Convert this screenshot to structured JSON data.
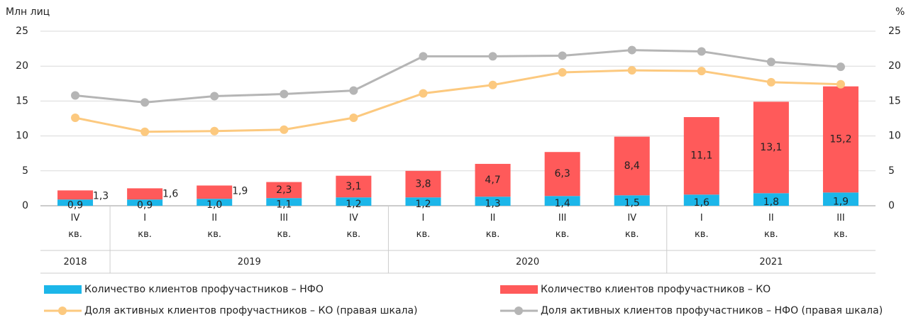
{
  "chart_data": {
    "type": "bar",
    "stacked": true,
    "y_label": "Млн лиц",
    "y2_label": "%",
    "categories": [
      "IV\nкв.",
      "I\nкв.",
      "II\nкв.",
      "III\nкв.",
      "IV\nкв.",
      "I\nкв.",
      "II\nкв.",
      "III\nкв.",
      "IV\nкв.",
      "I\nкв.",
      "II\nкв.",
      "III\nкв."
    ],
    "category_years": [
      "2018",
      "2019",
      "2019",
      "2019",
      "2019",
      "2020",
      "2020",
      "2020",
      "2020",
      "2021",
      "2021",
      "2021"
    ],
    "series": [
      {
        "name": "Количество клиентов профучастников – НФО",
        "type": "bar",
        "color": "#1cb6e9",
        "values": [
          0.9,
          0.9,
          1.0,
          1.1,
          1.2,
          1.2,
          1.3,
          1.4,
          1.5,
          1.6,
          1.8,
          1.9
        ],
        "value_labels": [
          "0,9",
          "0,9",
          "1,0",
          "1,1",
          "1,2",
          "1,2",
          "1,3",
          "1,4",
          "1,5",
          "1,6",
          "1,8",
          "1,9"
        ]
      },
      {
        "name": "Количество клиентов профучастников – КО",
        "type": "bar",
        "color": "#ff5a5a",
        "values": [
          1.3,
          1.6,
          1.9,
          2.3,
          3.1,
          3.8,
          4.7,
          6.3,
          8.4,
          11.1,
          13.1,
          15.2
        ],
        "value_labels": [
          "1,3",
          "1,6",
          "1,9",
          "2,3",
          "3,1",
          "3,8",
          "4,7",
          "6,3",
          "8,4",
          "11,1",
          "13,1",
          "15,2"
        ]
      },
      {
        "name": "Доля активных клиентов профучастников – КО (правая шкала)",
        "type": "line",
        "axis": "y2",
        "color": "#fcc97f",
        "values": [
          12.6,
          10.6,
          10.7,
          10.9,
          12.6,
          16.1,
          17.3,
          19.1,
          19.4,
          19.3,
          17.7,
          17.4
        ]
      },
      {
        "name": "Доля активных клиентов профучастников – НФО (правая шкала)",
        "type": "line",
        "axis": "y2",
        "color": "#b5b5b5",
        "values": [
          15.8,
          14.8,
          15.7,
          16.0,
          16.5,
          21.4,
          21.4,
          21.5,
          22.3,
          22.1,
          20.6,
          19.9
        ]
      }
    ],
    "ylim": [
      0,
      25
    ],
    "yticks": [
      0,
      5,
      10,
      15,
      20,
      25
    ],
    "y2lim": [
      0,
      25
    ],
    "y2ticks": [
      0,
      5,
      10,
      15,
      20,
      25
    ],
    "grid": true
  }
}
